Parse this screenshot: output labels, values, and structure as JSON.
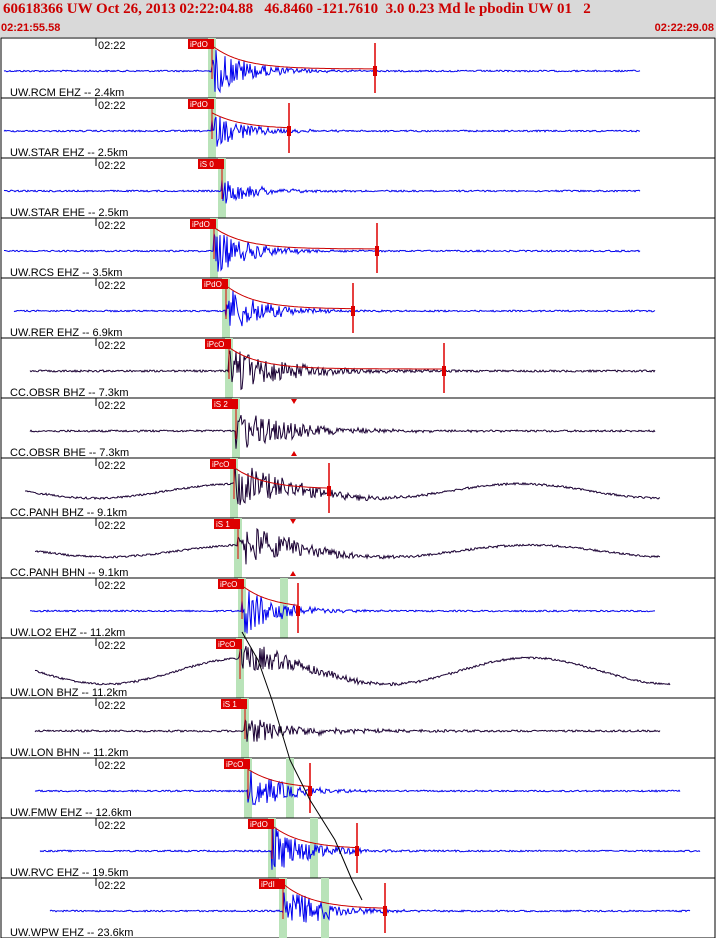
{
  "header": {
    "title": "60618366 UW Oct 26, 2013 02:22:04.88   46.8460 -121.7610  3.0 0.23 Md le pbodin UW 01   2",
    "start_time": "02:21:55.58",
    "end_time": "02:22:29.08"
  },
  "colors": {
    "header_bg": "#d9d9d9",
    "header_text": "#cc0000",
    "trace_short_period": "#0000ee",
    "trace_broadband": "#1a0033",
    "pick_flag": "#dd0000",
    "pick_window": "#b9e3b9",
    "coda_curve": "#cc0000",
    "travel_time_curve": "#000000"
  },
  "chart_data": {
    "type": "line",
    "title": "60618366 UW Oct 26, 2013 02:22:04.88   46.8460 -121.7610  3.0 0.23 Md le pbodin UW 01   2",
    "x_range": [
      "02:21:55.58",
      "02:22:29.08"
    ],
    "tick_label": "02:22",
    "series": [
      {
        "name": "UW.RCM EHZ -- 2.4km",
        "pick": "iPdO",
        "secondary_pick": ""
      },
      {
        "name": "UW.STAR EHZ -- 2.5km",
        "pick": "iPdO",
        "secondary_pick": ""
      },
      {
        "name": "UW.STAR EHE -- 2.5km",
        "pick": "iS 0",
        "secondary_pick": ""
      },
      {
        "name": "UW.RCS EHZ -- 3.5km",
        "pick": "iPdO",
        "secondary_pick": ""
      },
      {
        "name": "UW.RER EHZ -- 6.9km",
        "pick": "iPdO",
        "secondary_pick": ""
      },
      {
        "name": "CC.OBSR BHZ -- 7.3km",
        "pick": "iPcO",
        "secondary_pick": ""
      },
      {
        "name": "CC.OBSR BHE -- 7.3km",
        "pick": "iS 2",
        "secondary_pick": ""
      },
      {
        "name": "CC.PANH BHZ -- 9.1km",
        "pick": "iPcO",
        "secondary_pick": ""
      },
      {
        "name": "CC.PANH BHN -- 9.1km",
        "pick": "iS 1",
        "secondary_pick": ""
      },
      {
        "name": "UW.LO2 EHZ -- 11.2km",
        "pick": "iPcO",
        "secondary_pick": ""
      },
      {
        "name": "UW.LON BHZ -- 11.2km",
        "pick": "iPcO",
        "secondary_pick": ""
      },
      {
        "name": "UW.LON BHN -- 11.2km",
        "pick": "iS 1",
        "secondary_pick": ""
      },
      {
        "name": "UW.FMW EHZ -- 12.6km",
        "pick": "iPcO",
        "secondary_pick": ""
      },
      {
        "name": "UW.RVC EHZ -- 19.5km",
        "pick": "iPdO",
        "secondary_pick": ""
      },
      {
        "name": "UW.WPW EHZ -- 23.6km",
        "pick": "iPdI",
        "secondary_pick": ""
      }
    ]
  }
}
